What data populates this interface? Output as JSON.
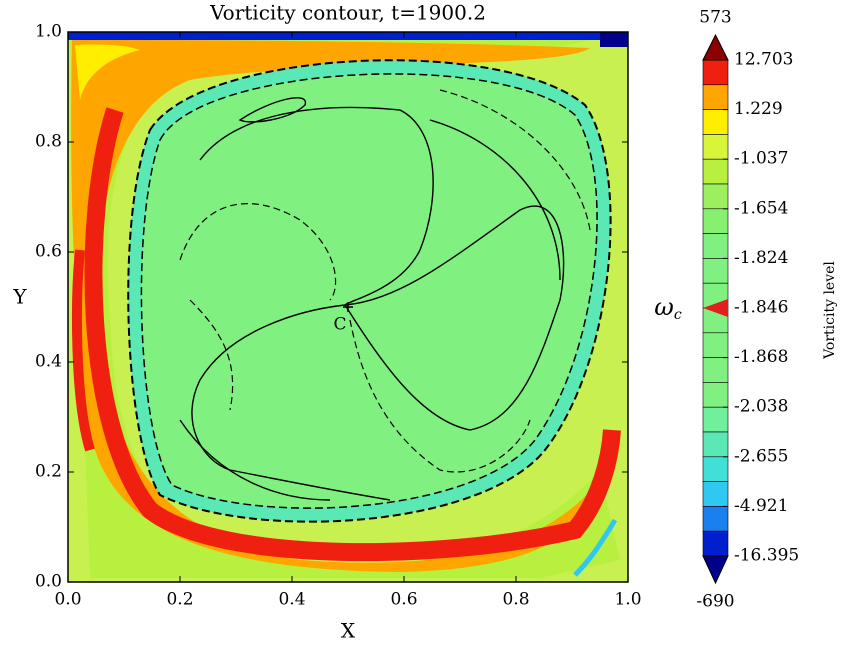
{
  "chart_data": {
    "type": "contour",
    "title": "Vorticity contour, t=1900.2",
    "xlabel": "X",
    "ylabel": "Y",
    "xlim": [
      0,
      1
    ],
    "ylim": [
      0,
      1
    ],
    "xticks": [
      {
        "value": 0,
        "label": "0.0"
      },
      {
        "value": 0.2,
        "label": "0.2"
      },
      {
        "value": 0.4,
        "label": "0.4"
      },
      {
        "value": 0.6,
        "label": "0.6"
      },
      {
        "value": 0.8,
        "label": "0.8"
      },
      {
        "value": 1,
        "label": "1.0"
      }
    ],
    "yticks": [
      {
        "value": 0,
        "label": "0.0"
      },
      {
        "value": 0.2,
        "label": "0.2"
      },
      {
        "value": 0.4,
        "label": "0.4"
      },
      {
        "value": 0.6,
        "label": "0.6"
      },
      {
        "value": 0.8,
        "label": "0.8"
      },
      {
        "value": 1,
        "label": "1.0"
      }
    ],
    "point": {
      "label": "C",
      "x": 0.5,
      "y": 0.5
    },
    "colorbar": {
      "label": "Vorticity level",
      "max": 573,
      "min": -690,
      "ticks": [
        12.703,
        1.229,
        -1.037,
        -1.654,
        -1.824,
        -1.846,
        -1.868,
        -2.038,
        -2.655,
        -4.921,
        -16.395
      ],
      "colors": [
        "#f02010",
        "#ffa500",
        "#ffee00",
        "#d8f53a",
        "#b8f040",
        "#9cf060",
        "#88f070",
        "#80f080",
        "#80f080",
        "#80f080",
        "#80f080",
        "#80f080",
        "#80f080",
        "#80f080",
        "#70f09a",
        "#5ae8b4",
        "#40e0d8",
        "#30c8f0",
        "#1a80f0",
        "#0020d0"
      ],
      "over_color": "#8b0000",
      "under_color": "#00008b",
      "marker": {
        "symbol": "ω",
        "subscript": "c",
        "level": -1.846,
        "color": "#e02020"
      }
    }
  }
}
